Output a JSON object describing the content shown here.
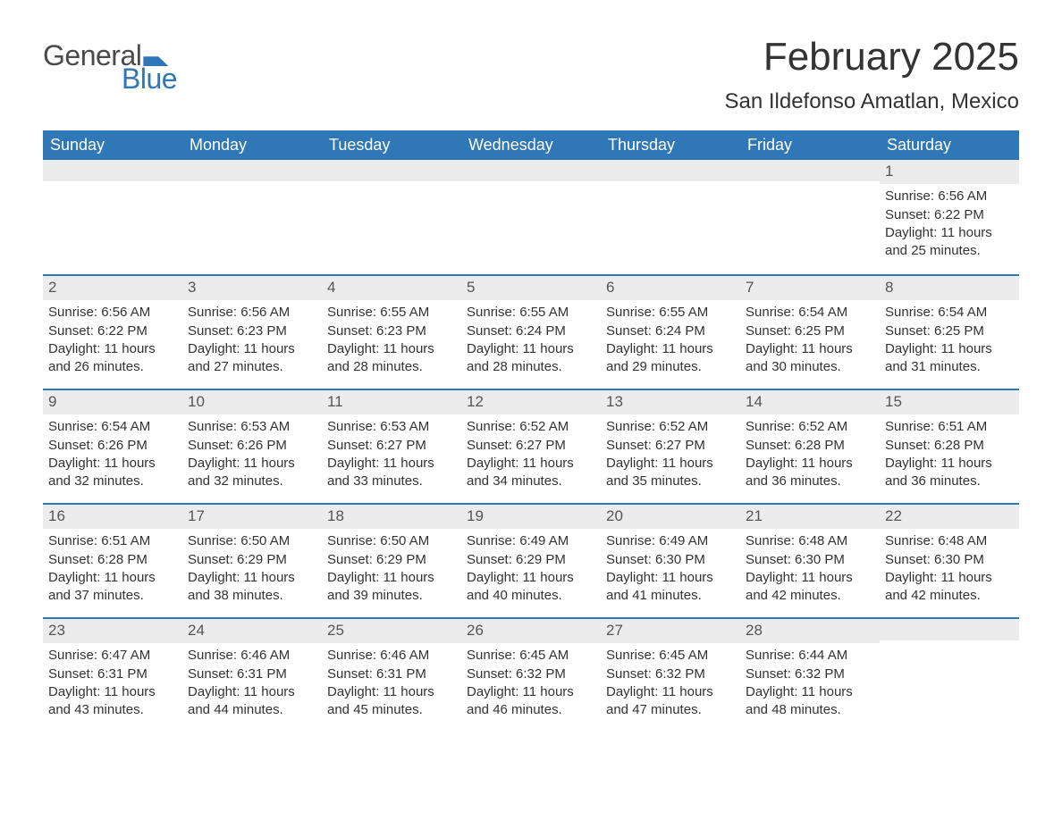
{
  "brand": {
    "word1": "General",
    "word2": "Blue"
  },
  "colors": {
    "brand_blue": "#2f77b6",
    "text": "#333333",
    "header_bg": "#2f77b6",
    "header_text": "#ffffff",
    "daynum_bg": "#ececec",
    "page_bg": "#ffffff"
  },
  "typography": {
    "month_title_fontsize": 44,
    "location_fontsize": 24,
    "weekday_fontsize": 18,
    "daynum_fontsize": 17,
    "body_fontsize": 15,
    "logo_fontsize": 32
  },
  "title": "February 2025",
  "location": "San Ildefonso Amatlan, Mexico",
  "weekdays": [
    "Sunday",
    "Monday",
    "Tuesday",
    "Wednesday",
    "Thursday",
    "Friday",
    "Saturday"
  ],
  "blank_leading_cells": 6,
  "labels": {
    "sunrise_prefix": "Sunrise: ",
    "sunset_prefix": "Sunset: ",
    "daylight_prefix": "Daylight: ",
    "daylight_mid": " hours and ",
    "daylight_suffix": " minutes."
  },
  "days": [
    {
      "n": 1,
      "sunrise": "6:56 AM",
      "sunset": "6:22 PM",
      "dl_h": 11,
      "dl_m": 25
    },
    {
      "n": 2,
      "sunrise": "6:56 AM",
      "sunset": "6:22 PM",
      "dl_h": 11,
      "dl_m": 26
    },
    {
      "n": 3,
      "sunrise": "6:56 AM",
      "sunset": "6:23 PM",
      "dl_h": 11,
      "dl_m": 27
    },
    {
      "n": 4,
      "sunrise": "6:55 AM",
      "sunset": "6:23 PM",
      "dl_h": 11,
      "dl_m": 28
    },
    {
      "n": 5,
      "sunrise": "6:55 AM",
      "sunset": "6:24 PM",
      "dl_h": 11,
      "dl_m": 28
    },
    {
      "n": 6,
      "sunrise": "6:55 AM",
      "sunset": "6:24 PM",
      "dl_h": 11,
      "dl_m": 29
    },
    {
      "n": 7,
      "sunrise": "6:54 AM",
      "sunset": "6:25 PM",
      "dl_h": 11,
      "dl_m": 30
    },
    {
      "n": 8,
      "sunrise": "6:54 AM",
      "sunset": "6:25 PM",
      "dl_h": 11,
      "dl_m": 31
    },
    {
      "n": 9,
      "sunrise": "6:54 AM",
      "sunset": "6:26 PM",
      "dl_h": 11,
      "dl_m": 32
    },
    {
      "n": 10,
      "sunrise": "6:53 AM",
      "sunset": "6:26 PM",
      "dl_h": 11,
      "dl_m": 32
    },
    {
      "n": 11,
      "sunrise": "6:53 AM",
      "sunset": "6:27 PM",
      "dl_h": 11,
      "dl_m": 33
    },
    {
      "n": 12,
      "sunrise": "6:52 AM",
      "sunset": "6:27 PM",
      "dl_h": 11,
      "dl_m": 34
    },
    {
      "n": 13,
      "sunrise": "6:52 AM",
      "sunset": "6:27 PM",
      "dl_h": 11,
      "dl_m": 35
    },
    {
      "n": 14,
      "sunrise": "6:52 AM",
      "sunset": "6:28 PM",
      "dl_h": 11,
      "dl_m": 36
    },
    {
      "n": 15,
      "sunrise": "6:51 AM",
      "sunset": "6:28 PM",
      "dl_h": 11,
      "dl_m": 36
    },
    {
      "n": 16,
      "sunrise": "6:51 AM",
      "sunset": "6:28 PM",
      "dl_h": 11,
      "dl_m": 37
    },
    {
      "n": 17,
      "sunrise": "6:50 AM",
      "sunset": "6:29 PM",
      "dl_h": 11,
      "dl_m": 38
    },
    {
      "n": 18,
      "sunrise": "6:50 AM",
      "sunset": "6:29 PM",
      "dl_h": 11,
      "dl_m": 39
    },
    {
      "n": 19,
      "sunrise": "6:49 AM",
      "sunset": "6:29 PM",
      "dl_h": 11,
      "dl_m": 40
    },
    {
      "n": 20,
      "sunrise": "6:49 AM",
      "sunset": "6:30 PM",
      "dl_h": 11,
      "dl_m": 41
    },
    {
      "n": 21,
      "sunrise": "6:48 AM",
      "sunset": "6:30 PM",
      "dl_h": 11,
      "dl_m": 42
    },
    {
      "n": 22,
      "sunrise": "6:48 AM",
      "sunset": "6:30 PM",
      "dl_h": 11,
      "dl_m": 42
    },
    {
      "n": 23,
      "sunrise": "6:47 AM",
      "sunset": "6:31 PM",
      "dl_h": 11,
      "dl_m": 43
    },
    {
      "n": 24,
      "sunrise": "6:46 AM",
      "sunset": "6:31 PM",
      "dl_h": 11,
      "dl_m": 44
    },
    {
      "n": 25,
      "sunrise": "6:46 AM",
      "sunset": "6:31 PM",
      "dl_h": 11,
      "dl_m": 45
    },
    {
      "n": 26,
      "sunrise": "6:45 AM",
      "sunset": "6:32 PM",
      "dl_h": 11,
      "dl_m": 46
    },
    {
      "n": 27,
      "sunrise": "6:45 AM",
      "sunset": "6:32 PM",
      "dl_h": 11,
      "dl_m": 47
    },
    {
      "n": 28,
      "sunrise": "6:44 AM",
      "sunset": "6:32 PM",
      "dl_h": 11,
      "dl_m": 48
    }
  ]
}
